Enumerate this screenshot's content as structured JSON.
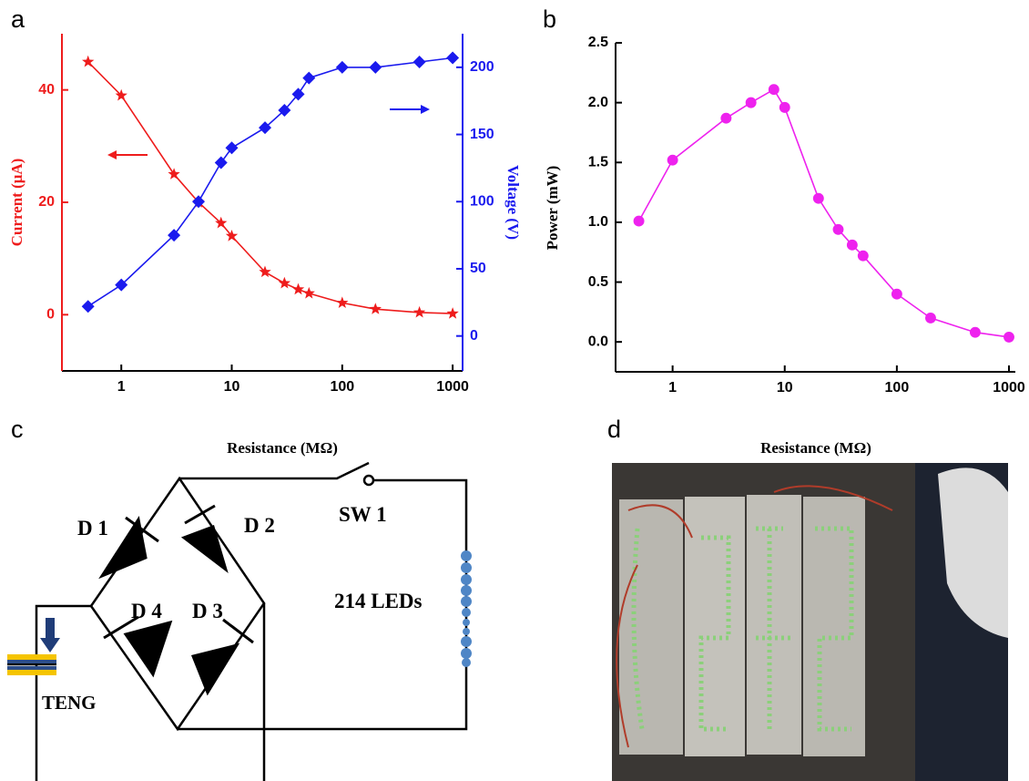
{
  "panel_labels": [
    "a",
    "b",
    "c",
    "d"
  ],
  "chart_data": [
    {
      "type": "line",
      "x_label": "Resistance (MΩ)",
      "y_label": "Current (μA)",
      "y2_label": "Voltage (V)",
      "xscale": "log",
      "x": [
        0.5,
        1,
        3,
        5,
        8,
        10,
        20,
        30,
        40,
        50,
        100,
        200,
        500,
        1000
      ],
      "xlim": [
        0.29,
        1230
      ],
      "xticks": [
        1,
        10,
        100,
        1000
      ],
      "ylim": [
        -10,
        50
      ],
      "yticks": [
        0,
        20,
        40
      ],
      "y2lim": [
        -26,
        225
      ],
      "y2ticks": [
        0,
        50,
        100,
        150,
        200
      ],
      "series": [
        {
          "color": "#ee1c1c",
          "marker": "star",
          "values": [
            45,
            39,
            25,
            20,
            16.3,
            14,
            7.6,
            5.6,
            4.5,
            3.8,
            2.1,
            1.0,
            0.4,
            0.2
          ]
        },
        {
          "color": "#1a1aee",
          "marker": "diamond",
          "axis": "y2",
          "values": [
            22,
            38,
            75,
            100,
            129,
            140,
            155,
            168,
            180,
            192,
            200,
            200,
            204,
            207
          ]
        }
      ]
    },
    {
      "type": "line",
      "x_label": "Resistance (MΩ)",
      "y_label": "Power (mW)",
      "xscale": "log",
      "x": [
        0.5,
        1,
        3,
        5,
        8,
        10,
        20,
        30,
        40,
        50,
        100,
        200,
        500,
        1000
      ],
      "xlim": [
        0.31,
        1140
      ],
      "xticks": [
        1,
        10,
        100,
        1000
      ],
      "ylim": [
        -0.25,
        2.5
      ],
      "yticks": [
        {
          "value": 0,
          "label": "0.0"
        },
        0.5,
        {
          "value": 1,
          "label": "1.0"
        },
        1.5,
        {
          "value": 2,
          "label": "2.0"
        },
        2.5
      ],
      "series": [
        {
          "color": "#ee22ee",
          "marker": "circle",
          "values": [
            1.01,
            1.52,
            1.87,
            2.0,
            2.11,
            1.96,
            1.2,
            0.94,
            0.81,
            0.72,
            0.4,
            0.2,
            0.08,
            0.04
          ]
        }
      ]
    }
  ],
  "circuit": {
    "diodes": [
      "D 1",
      "D 2",
      "D 3",
      "D 4"
    ],
    "switch": "SW 1",
    "load": "214 LEDs",
    "source": "TENG"
  }
}
